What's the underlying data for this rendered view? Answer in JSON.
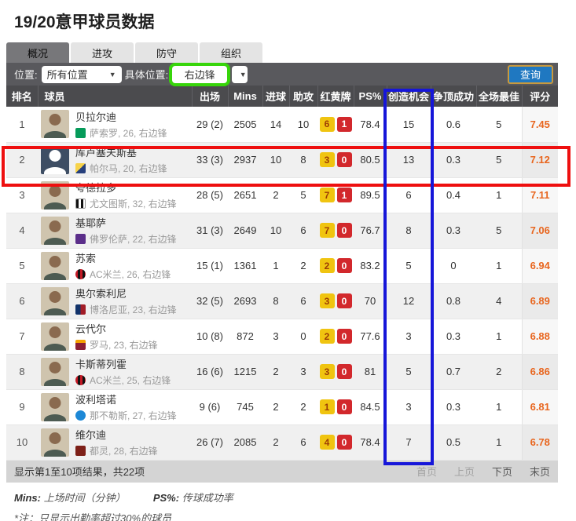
{
  "page": {
    "title": "19/20意甲球员数据"
  },
  "tabs": [
    {
      "label": "概况",
      "active": true
    },
    {
      "label": "进攻",
      "active": false
    },
    {
      "label": "防守",
      "active": false
    },
    {
      "label": "组织",
      "active": false
    }
  ],
  "filters": {
    "position_label": "位置:",
    "position_value": "所有位置",
    "specific_label": "具体位置:",
    "specific_value": "右边锋",
    "dropdown_arrow": "▼",
    "query_button": "查询"
  },
  "table": {
    "headers": [
      "排名",
      "球员",
      "出场",
      "Mins",
      "进球",
      "助攻",
      "红黄牌",
      "PS%",
      "创造机会",
      "争顶成功",
      "全场最佳",
      "评分"
    ],
    "rows": [
      {
        "rank": "1",
        "name": "贝拉尔迪",
        "club": "sassuolo",
        "avatar": "photo",
        "meta": "萨索罗, 26, 右边锋",
        "apps": "29 (2)",
        "mins": "2505",
        "goals": "14",
        "assists": "10",
        "yellow": "6",
        "red": "1",
        "ps": "78.4",
        "chances": "15",
        "aerial": "0.6",
        "motm": "5",
        "rating": "7.45",
        "highlight": false
      },
      {
        "rank": "2",
        "name": "库卢塞夫斯基",
        "club": "parma",
        "avatar": "placeholder",
        "meta": "帕尔马, 20, 右边锋",
        "apps": "33 (3)",
        "mins": "2937",
        "goals": "10",
        "assists": "8",
        "yellow": "3",
        "red": "0",
        "ps": "80.5",
        "chances": "13",
        "aerial": "0.3",
        "motm": "5",
        "rating": "7.12",
        "highlight": true
      },
      {
        "rank": "3",
        "name": "夸德拉多",
        "club": "juventus",
        "avatar": "photo",
        "meta": "尤文图斯, 32, 右边锋",
        "apps": "28 (5)",
        "mins": "2651",
        "goals": "2",
        "assists": "5",
        "yellow": "7",
        "red": "1",
        "ps": "89.5",
        "chances": "6",
        "aerial": "0.4",
        "motm": "1",
        "rating": "7.11",
        "highlight": false
      },
      {
        "rank": "4",
        "name": "基耶萨",
        "club": "fiorentina",
        "avatar": "photo",
        "meta": "佛罗伦萨, 22, 右边锋",
        "apps": "31 (3)",
        "mins": "2649",
        "goals": "10",
        "assists": "6",
        "yellow": "7",
        "red": "0",
        "ps": "76.7",
        "chances": "8",
        "aerial": "0.3",
        "motm": "5",
        "rating": "7.06",
        "highlight": false
      },
      {
        "rank": "5",
        "name": "苏索",
        "club": "milan",
        "avatar": "photo",
        "meta": "AC米兰, 26, 右边锋",
        "apps": "15 (1)",
        "mins": "1361",
        "goals": "1",
        "assists": "2",
        "yellow": "2",
        "red": "0",
        "ps": "83.2",
        "chances": "5",
        "aerial": "0",
        "motm": "1",
        "rating": "6.94",
        "highlight": false
      },
      {
        "rank": "6",
        "name": "奥尔索利尼",
        "club": "bologna",
        "avatar": "photo",
        "meta": "博洛尼亚, 23, 右边锋",
        "apps": "32 (5)",
        "mins": "2693",
        "goals": "8",
        "assists": "6",
        "yellow": "3",
        "red": "0",
        "ps": "70",
        "chances": "12",
        "aerial": "0.8",
        "motm": "4",
        "rating": "6.89",
        "highlight": false
      },
      {
        "rank": "7",
        "name": "云代尔",
        "club": "roma",
        "avatar": "photo",
        "meta": "罗马, 23, 右边锋",
        "apps": "10 (8)",
        "mins": "872",
        "goals": "3",
        "assists": "0",
        "yellow": "2",
        "red": "0",
        "ps": "77.6",
        "chances": "3",
        "aerial": "0.3",
        "motm": "1",
        "rating": "6.88",
        "highlight": false
      },
      {
        "rank": "8",
        "name": "卡斯蒂列霍",
        "club": "milan",
        "avatar": "photo",
        "meta": "AC米兰, 25, 右边锋",
        "apps": "16 (6)",
        "mins": "1215",
        "goals": "2",
        "assists": "3",
        "yellow": "3",
        "red": "0",
        "ps": "81",
        "chances": "5",
        "aerial": "0.7",
        "motm": "2",
        "rating": "6.86",
        "highlight": false
      },
      {
        "rank": "9",
        "name": "波利塔诺",
        "club": "napoli",
        "avatar": "photo",
        "meta": "那不勒斯, 27, 右边锋",
        "apps": "9 (6)",
        "mins": "745",
        "goals": "2",
        "assists": "2",
        "yellow": "1",
        "red": "0",
        "ps": "84.5",
        "chances": "3",
        "aerial": "0.3",
        "motm": "1",
        "rating": "6.81",
        "highlight": false
      },
      {
        "rank": "10",
        "name": "维尔迪",
        "club": "torino",
        "avatar": "photo",
        "meta": "都灵, 28, 右边锋",
        "apps": "26 (7)",
        "mins": "2085",
        "goals": "2",
        "assists": "6",
        "yellow": "4",
        "red": "0",
        "ps": "78.4",
        "chances": "7",
        "aerial": "0.5",
        "motm": "1",
        "rating": "6.78",
        "highlight": false
      }
    ]
  },
  "footer": {
    "summary": "显示第1至10项结果，共22项",
    "pagination": [
      {
        "label": "首页",
        "enabled": false
      },
      {
        "label": "上页",
        "enabled": false
      },
      {
        "label": "下页",
        "enabled": true
      },
      {
        "label": "末页",
        "enabled": true
      }
    ]
  },
  "notes": {
    "mins_label": "Mins:",
    "mins_text": "上场时间（分钟）",
    "ps_label": "PS%:",
    "ps_text": "传球成功率",
    "disclaimer": "*注：只显示出勤率超过30%的球员"
  },
  "colors": {
    "header_bar": "#4b4b4e",
    "filter_bar": "#59595d",
    "accent_blue": "#1f78c1",
    "rating_orange": "#e8661f",
    "yellow_card": "#f0c410",
    "red_card": "#d2282c",
    "highlight_green": "#37d50a",
    "highlight_red": "#ee0f0f",
    "highlight_blue": "#1616d9"
  }
}
